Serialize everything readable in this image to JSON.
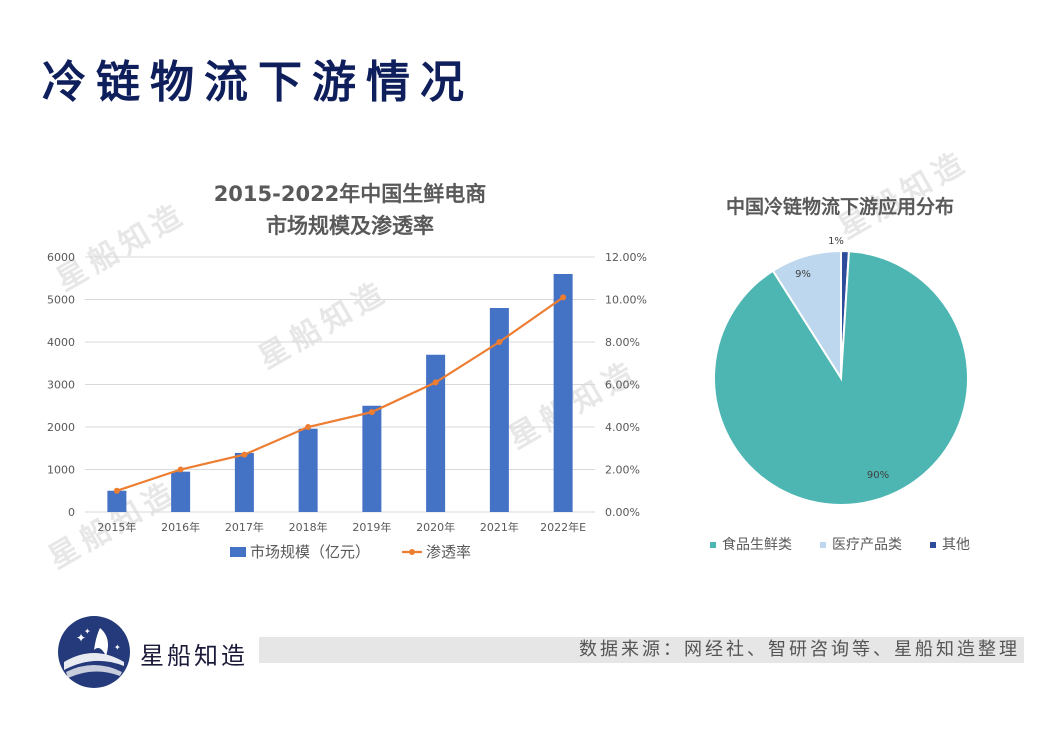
{
  "page": {
    "title": "冷链物流下游情况",
    "watermark": "星船知造"
  },
  "colors": {
    "title": "#0f1f5c",
    "bar": "#4472c4",
    "line": "#ed7d31",
    "pie_food": "#4db6b3",
    "pie_medical": "#bdd7ee",
    "pie_other": "#2e4c9c"
  },
  "chart_data": [
    {
      "type": "bar",
      "title": "2015-2022年中国生鲜电商\n市场规模及渗透率",
      "title_lines": [
        "2015-2022年中国生鲜电商",
        "市场规模及渗透率"
      ],
      "categories": [
        "2015年",
        "2016年",
        "2017年",
        "2018年",
        "2019年",
        "2020年",
        "2021年",
        "2022年E"
      ],
      "series": [
        {
          "name": "市场规模（亿元）",
          "type": "bar",
          "axis": "left",
          "values": [
            500,
            950,
            1390,
            1960,
            2500,
            3700,
            4800,
            5600
          ]
        },
        {
          "name": "渗透率",
          "type": "line",
          "axis": "right",
          "values": [
            0.01,
            0.02,
            0.027,
            0.04,
            0.047,
            0.061,
            0.08,
            0.101
          ]
        }
      ],
      "y_left": {
        "lim": [
          0,
          6000
        ],
        "ticks": [
          "0",
          "1000",
          "2000",
          "3000",
          "4000",
          "5000",
          "6000"
        ]
      },
      "y_right": {
        "lim": [
          0,
          0.12
        ],
        "ticks": [
          "0.00%",
          "2.00%",
          "4.00%",
          "6.00%",
          "8.00%",
          "10.00%",
          "12.00%"
        ]
      },
      "grid": true,
      "legend": "bottom"
    },
    {
      "type": "pie",
      "title": "中国冷链物流下游应用分布",
      "slices": [
        {
          "label": "食品生鲜类",
          "value": 90,
          "display": "90%"
        },
        {
          "label": "医疗产品类",
          "value": 9,
          "display": "9%"
        },
        {
          "label": "其他",
          "value": 1,
          "display": "1%"
        }
      ],
      "legend": "bottom"
    }
  ],
  "footer": {
    "brand": "星船知造",
    "source": "数据来源：网经社、智研咨询等、星船知造整理"
  }
}
